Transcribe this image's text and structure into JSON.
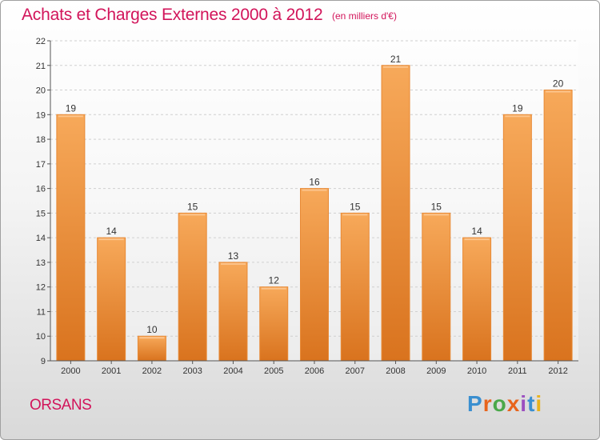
{
  "header": {
    "title": "Achats et Charges Externes 2000 à 2012",
    "subtitle": "(en milliers d'€)"
  },
  "footer": {
    "commune": "ORSANS",
    "logo_text": "Proxiti",
    "logo_colors": [
      "#3a8fd0",
      "#e8641c",
      "#4aa84a",
      "#e8641c",
      "#9b4fc0",
      "#3a8fd0",
      "#e8b21c"
    ]
  },
  "chart_data": {
    "type": "bar",
    "title": "Achats et Charges Externes 2000 à 2012",
    "subtitle": "(en milliers d'€)",
    "categories": [
      "2000",
      "2001",
      "2002",
      "2003",
      "2004",
      "2005",
      "2006",
      "2007",
      "2008",
      "2009",
      "2010",
      "2011",
      "2012"
    ],
    "values": [
      19,
      14,
      10,
      15,
      13,
      12,
      16,
      15,
      21,
      15,
      14,
      19,
      20
    ],
    "ylim": [
      9,
      22
    ],
    "yticks": [
      9,
      10,
      11,
      12,
      13,
      14,
      15,
      16,
      17,
      18,
      19,
      20,
      21,
      22
    ],
    "grid": true,
    "bar_color": "#f0903a",
    "xlabel": "",
    "ylabel": ""
  }
}
